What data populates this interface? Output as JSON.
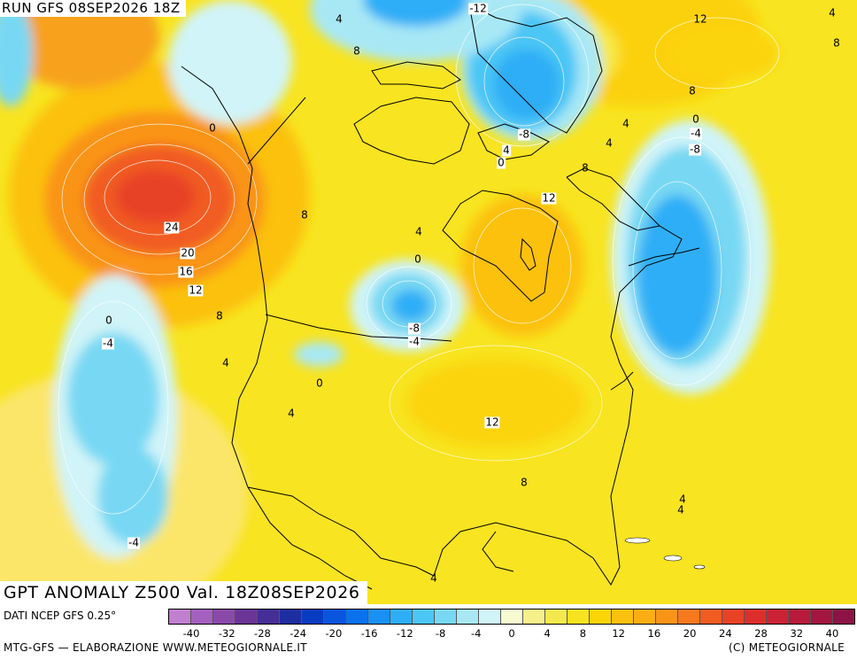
{
  "header": {
    "run_title": "RUN GFS 08SEP2026 18Z"
  },
  "map": {
    "anomaly_title": "GPT ANOMALY Z500 Val. 18Z08SEP2026",
    "contour_labels": [
      "-12",
      "4",
      "4",
      "8",
      "12",
      "4",
      "8",
      "8",
      "0",
      "-8",
      "4",
      "0",
      "-4",
      "-8",
      "8",
      "4",
      "0",
      "8",
      "24",
      "12",
      "20",
      "16",
      "12",
      "8",
      "4",
      "0",
      "0",
      "-4",
      "-8",
      "-4",
      "-4",
      "4",
      "0",
      "4",
      "12",
      "8",
      "4",
      "4",
      "4"
    ],
    "colors": {
      "land_coast": "#000000"
    }
  },
  "legend": {
    "data_source": "DATI NCEP GFS 0.25°",
    "scale_labels": [
      "-40",
      "-32",
      "-28",
      "-24",
      "-20",
      "-16",
      "-12",
      "-8",
      "-4",
      "0",
      "4",
      "8",
      "12",
      "16",
      "20",
      "24",
      "28",
      "32",
      "40"
    ],
    "scale_colors": [
      "#c17fd0",
      "#a460bf",
      "#8a4aaa",
      "#6a3596",
      "#452e96",
      "#1d2fa0",
      "#0a3cc2",
      "#0a55dd",
      "#0b72ee",
      "#1890f4",
      "#2eaef6",
      "#4cc6f5",
      "#78d8f3",
      "#a8e8f5",
      "#d0f4f8",
      "#f6fcd0",
      "#f5f08a",
      "#f4e94c",
      "#f8e320",
      "#fbd40a",
      "#fcc10e",
      "#fbae13",
      "#f99419",
      "#f6791e",
      "#f15c22",
      "#e84325",
      "#dc2f2b",
      "#cc2235",
      "#b81a3c",
      "#a31640",
      "#8d1245"
    ]
  },
  "footer": {
    "credit_left": "MTG-GFS — ELABORAZIONE WWW.METEOGIORNALE.IT",
    "credit_right": "(C) METEOGIORNALE"
  }
}
